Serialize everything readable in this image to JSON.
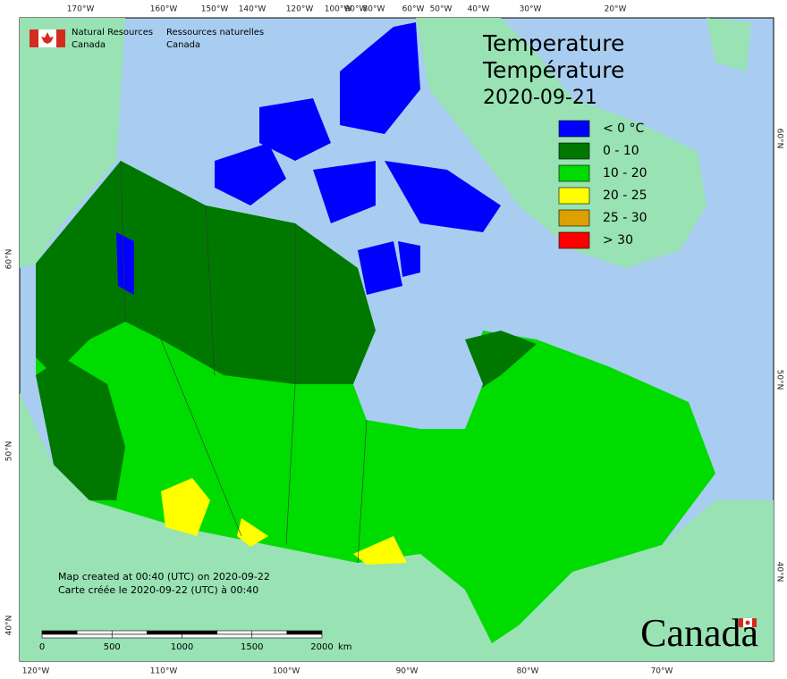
{
  "header": {
    "agency_en": [
      "Natural Resources",
      "Canada"
    ],
    "agency_fr": [
      "Ressources naturelles",
      "Canada"
    ]
  },
  "title": [
    "Temperature",
    "Température",
    "2020-09-21"
  ],
  "legend": [
    {
      "label": "< 0 °C",
      "color": "#0000ff"
    },
    {
      "label": "0 - 10",
      "color": "#007800"
    },
    {
      "label": "10 - 20",
      "color": "#00dc00"
    },
    {
      "label": "20 - 25",
      "color": "#ffff00"
    },
    {
      "label": "25 - 30",
      "color": "#dca000"
    },
    {
      "label": "> 30",
      "color": "#ff0000"
    }
  ],
  "graticule": {
    "top": [
      "170°W",
      "160°W",
      "150°W",
      "140°W",
      "120°W",
      "100°W",
      "90°W",
      "80°W",
      "60°W",
      "50°W",
      "40°W",
      "30°W",
      "20°W"
    ],
    "bottom": [
      "120°W",
      "110°W",
      "100°W",
      "90°W",
      "80°W",
      "70°W"
    ],
    "left": [
      "60°N",
      "50°N",
      "40°N"
    ],
    "right": [
      "60°N",
      "50°N",
      "40°N"
    ]
  },
  "footnote": [
    "Map created at 00:40 (UTC) on 2020-09-22",
    "Carte créée le 2020-09-22 (UTC) à 00:40"
  ],
  "scale": {
    "ticks": [
      0,
      500,
      1000,
      1500,
      2000
    ],
    "unit": "km"
  },
  "wordmark": "Canada"
}
